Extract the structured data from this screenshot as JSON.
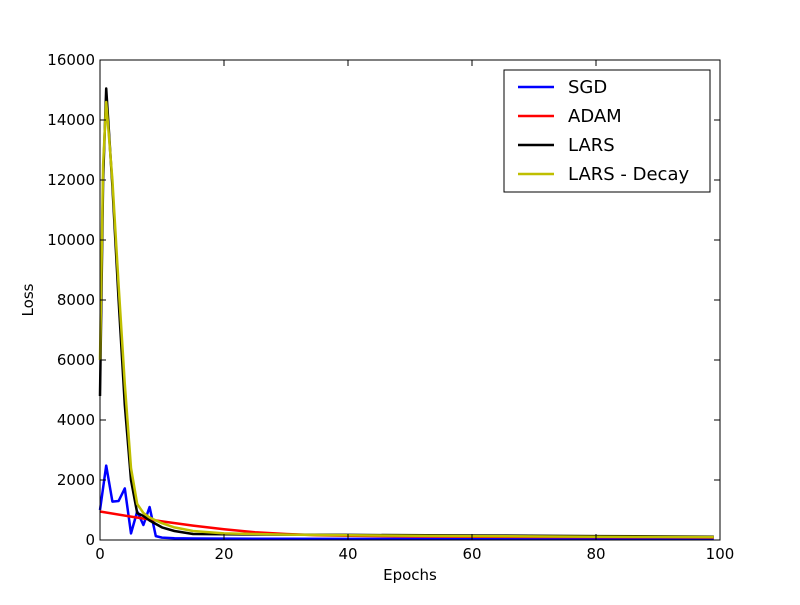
{
  "chart_data": {
    "type": "line",
    "title": "",
    "xlabel": "Epochs",
    "ylabel": "Loss",
    "xlim": [
      0,
      100
    ],
    "ylim": [
      0,
      16000
    ],
    "xticks": [
      0,
      20,
      40,
      60,
      80,
      100
    ],
    "yticks": [
      0,
      2000,
      4000,
      6000,
      8000,
      10000,
      12000,
      14000,
      16000
    ],
    "grid": false,
    "legend_position": "top-right",
    "series": [
      {
        "name": "SGD",
        "color": "#0000ff",
        "x": [
          0,
          1,
          2,
          3,
          4,
          5,
          6,
          7,
          8,
          9,
          10,
          12,
          15,
          20,
          30,
          40,
          60,
          80,
          99
        ],
        "y": [
          1000,
          2480,
          1280,
          1300,
          1720,
          220,
          950,
          500,
          1100,
          130,
          80,
          60,
          50,
          45,
          40,
          38,
          35,
          32,
          30
        ]
      },
      {
        "name": "ADAM",
        "color": "#ff0000",
        "x": [
          0,
          5,
          10,
          15,
          20,
          25,
          30,
          35,
          40,
          50,
          60,
          70,
          80,
          90,
          99
        ],
        "y": [
          950,
          780,
          620,
          480,
          360,
          260,
          200,
          160,
          140,
          120,
          110,
          100,
          95,
          90,
          85
        ]
      },
      {
        "name": "LARS",
        "color": "#000000",
        "x": [
          0,
          0.5,
          1,
          2,
          3,
          4,
          5,
          6,
          7,
          8,
          10,
          12,
          15,
          20,
          30,
          40,
          60,
          80,
          99
        ],
        "y": [
          4800,
          12000,
          15050,
          11800,
          8000,
          4500,
          2000,
          900,
          800,
          650,
          420,
          300,
          200,
          190,
          180,
          170,
          150,
          130,
          110
        ]
      },
      {
        "name": "LARS - Decay",
        "color": "#bfbf00",
        "x": [
          0,
          0.5,
          1,
          2,
          3,
          4,
          5,
          6,
          7,
          8,
          10,
          12,
          15,
          20,
          30,
          40,
          60,
          80,
          99
        ],
        "y": [
          6000,
          12500,
          14600,
          12000,
          8500,
          5200,
          2400,
          1200,
          900,
          750,
          560,
          420,
          300,
          220,
          180,
          160,
          130,
          110,
          95
        ]
      }
    ]
  }
}
